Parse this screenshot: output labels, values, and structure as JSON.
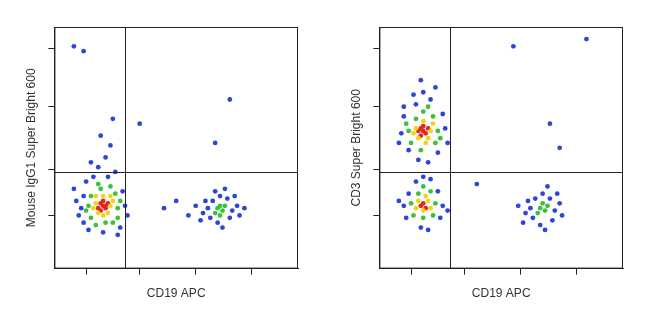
{
  "chart_data": [
    {
      "type": "scatter",
      "x_label": "CD19 APC",
      "y_label": "Mouse IgG1 Super Bright 600",
      "xlim": [
        0,
        100
      ],
      "ylim": [
        0,
        100
      ],
      "xticks": [
        13,
        35,
        58,
        81
      ],
      "yticks": [
        22,
        41,
        67,
        91
      ],
      "tick_labels": false,
      "quadrant_x": 29,
      "quadrant_y": 40,
      "series": [
        {
          "color": "#2d46d8",
          "x": [
            11,
            29,
            12,
            28,
            10,
            16,
            22,
            20,
            14,
            27,
            9,
            30,
            18,
            21,
            15,
            23,
            19,
            13,
            25,
            26,
            12,
            8,
            8,
            12,
            35,
            24,
            63,
            73,
            65,
            71,
            64,
            72,
            68,
            67,
            61,
            75,
            62,
            74,
            69,
            60,
            76,
            66,
            58,
            78,
            70,
            66,
            72,
            45,
            50,
            55
          ],
          "values": [
            25,
            26,
            30,
            32,
            22,
            38,
            38,
            15,
            16,
            17,
            28,
            22,
            42,
            46,
            44,
            51,
            55,
            36,
            40,
            14,
            19,
            33,
            92,
            90,
            60,
            62,
            25,
            24,
            28,
            29,
            21,
            21,
            30,
            19,
            23,
            26,
            28,
            30,
            17,
            20,
            22,
            32,
            26,
            25,
            33,
            52,
            70,
            25,
            28,
            22
          ]
        },
        {
          "color": "#3cc23a",
          "x": [
            14,
            26,
            15,
            25,
            19,
            21,
            15,
            26,
            13,
            27,
            18,
            23,
            17,
            24,
            67,
            69,
            68,
            66,
            70,
            68
          ],
          "values": [
            26,
            25,
            30,
            31,
            33,
            19,
            21,
            21,
            24,
            28,
            35,
            34,
            18,
            19,
            25,
            24,
            26,
            23,
            26,
            22
          ]
        },
        {
          "color": "#f2d21b",
          "x": [
            17,
            23,
            20,
            18,
            22,
            16,
            24,
            20,
            17,
            23
          ],
          "values": [
            27,
            26,
            30,
            23,
            23,
            25,
            28,
            22,
            30,
            30
          ]
        },
        {
          "color": "#e3261c",
          "x": [
            19,
            20,
            21,
            20,
            18,
            22,
            19,
            21
          ],
          "values": [
            27,
            26,
            25,
            28,
            25,
            27,
            24,
            26
          ]
        }
      ]
    },
    {
      "type": "scatter",
      "x_label": "CD19 APC",
      "y_label": "CD3 Super Bright 600",
      "xlim": [
        0,
        100
      ],
      "ylim": [
        0,
        100
      ],
      "xticks": [
        13,
        35,
        58,
        81
      ],
      "yticks": [
        22,
        41,
        67,
        91
      ],
      "tick_labels": false,
      "quadrant_x": 29,
      "quadrant_y": 40,
      "series": [
        {
          "color": "#2d46d8",
          "x": [
            9,
            27,
            10,
            26,
            15,
            21,
            18,
            12,
            24,
            16,
            20,
            8,
            28,
            14,
            23,
            10,
            17,
            10,
            26,
            12,
            24,
            11,
            25,
            17,
            20,
            15,
            21,
            8,
            28,
            18,
            62,
            72,
            64,
            70,
            63,
            71,
            67,
            66,
            60,
            74,
            61,
            73,
            68,
            59,
            75,
            69,
            57,
            85,
            55,
            70,
            74,
            40
          ],
          "values": [
            56,
            58,
            63,
            64,
            68,
            70,
            73,
            49,
            48,
            45,
            44,
            52,
            52,
            72,
            75,
            67,
            78,
            26,
            26,
            31,
            32,
            21,
            21,
            17,
            16,
            36,
            37,
            28,
            24,
            38,
            25,
            24,
            29,
            29,
            21,
            20,
            31,
            18,
            23,
            27,
            28,
            31,
            16,
            19,
            22,
            34,
            26,
            95,
            92,
            60,
            50,
            35
          ]
        },
        {
          "color": "#3cc23a",
          "x": [
            12,
            24,
            15,
            22,
            18,
            13,
            23,
            17,
            20,
            11,
            25,
            13,
            23,
            16,
            21,
            18,
            14,
            22,
            18,
            66,
            68,
            67,
            69,
            65
          ],
          "values": [
            57,
            57,
            62,
            63,
            65,
            52,
            52,
            49,
            67,
            60,
            54,
            27,
            27,
            31,
            32,
            21,
            22,
            22,
            34,
            25,
            24,
            27,
            26,
            23
          ]
        },
        {
          "color": "#f2d21b",
          "x": [
            15,
            21,
            18,
            16,
            20,
            14,
            22,
            19,
            16,
            20,
            18,
            19,
            15,
            21
          ],
          "values": [
            58,
            57,
            61,
            54,
            54,
            56,
            60,
            52,
            28,
            28,
            24,
            30,
            25,
            25
          ]
        },
        {
          "color": "#e3261c",
          "x": [
            17,
            18,
            19,
            18,
            16,
            20,
            17,
            18,
            19,
            17
          ],
          "values": [
            58,
            57,
            56,
            59,
            57,
            58,
            55,
            27,
            25,
            26
          ]
        }
      ]
    }
  ]
}
